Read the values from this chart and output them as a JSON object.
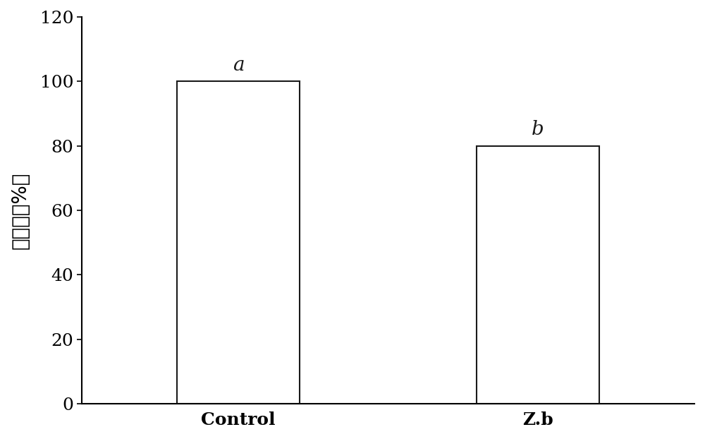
{
  "categories": [
    "Control",
    "Z.b"
  ],
  "values": [
    100,
    80
  ],
  "bar_color": "#ffffff",
  "bar_edgecolor": "#1a1a1a",
  "bar_linewidth": 1.5,
  "ylabel": "发病率（%）",
  "ylim": [
    0,
    120
  ],
  "yticks": [
    0,
    20,
    40,
    60,
    80,
    100,
    120
  ],
  "labels": [
    "a",
    "b"
  ],
  "label_fontsize": 20,
  "tick_fontsize": 18,
  "ylabel_fontsize": 20,
  "xlabel_fontsize": 18,
  "bar_width": 0.18,
  "x_positions": [
    0.28,
    0.72
  ],
  "xlim": [
    0.05,
    0.95
  ],
  "background_color": "#ffffff"
}
